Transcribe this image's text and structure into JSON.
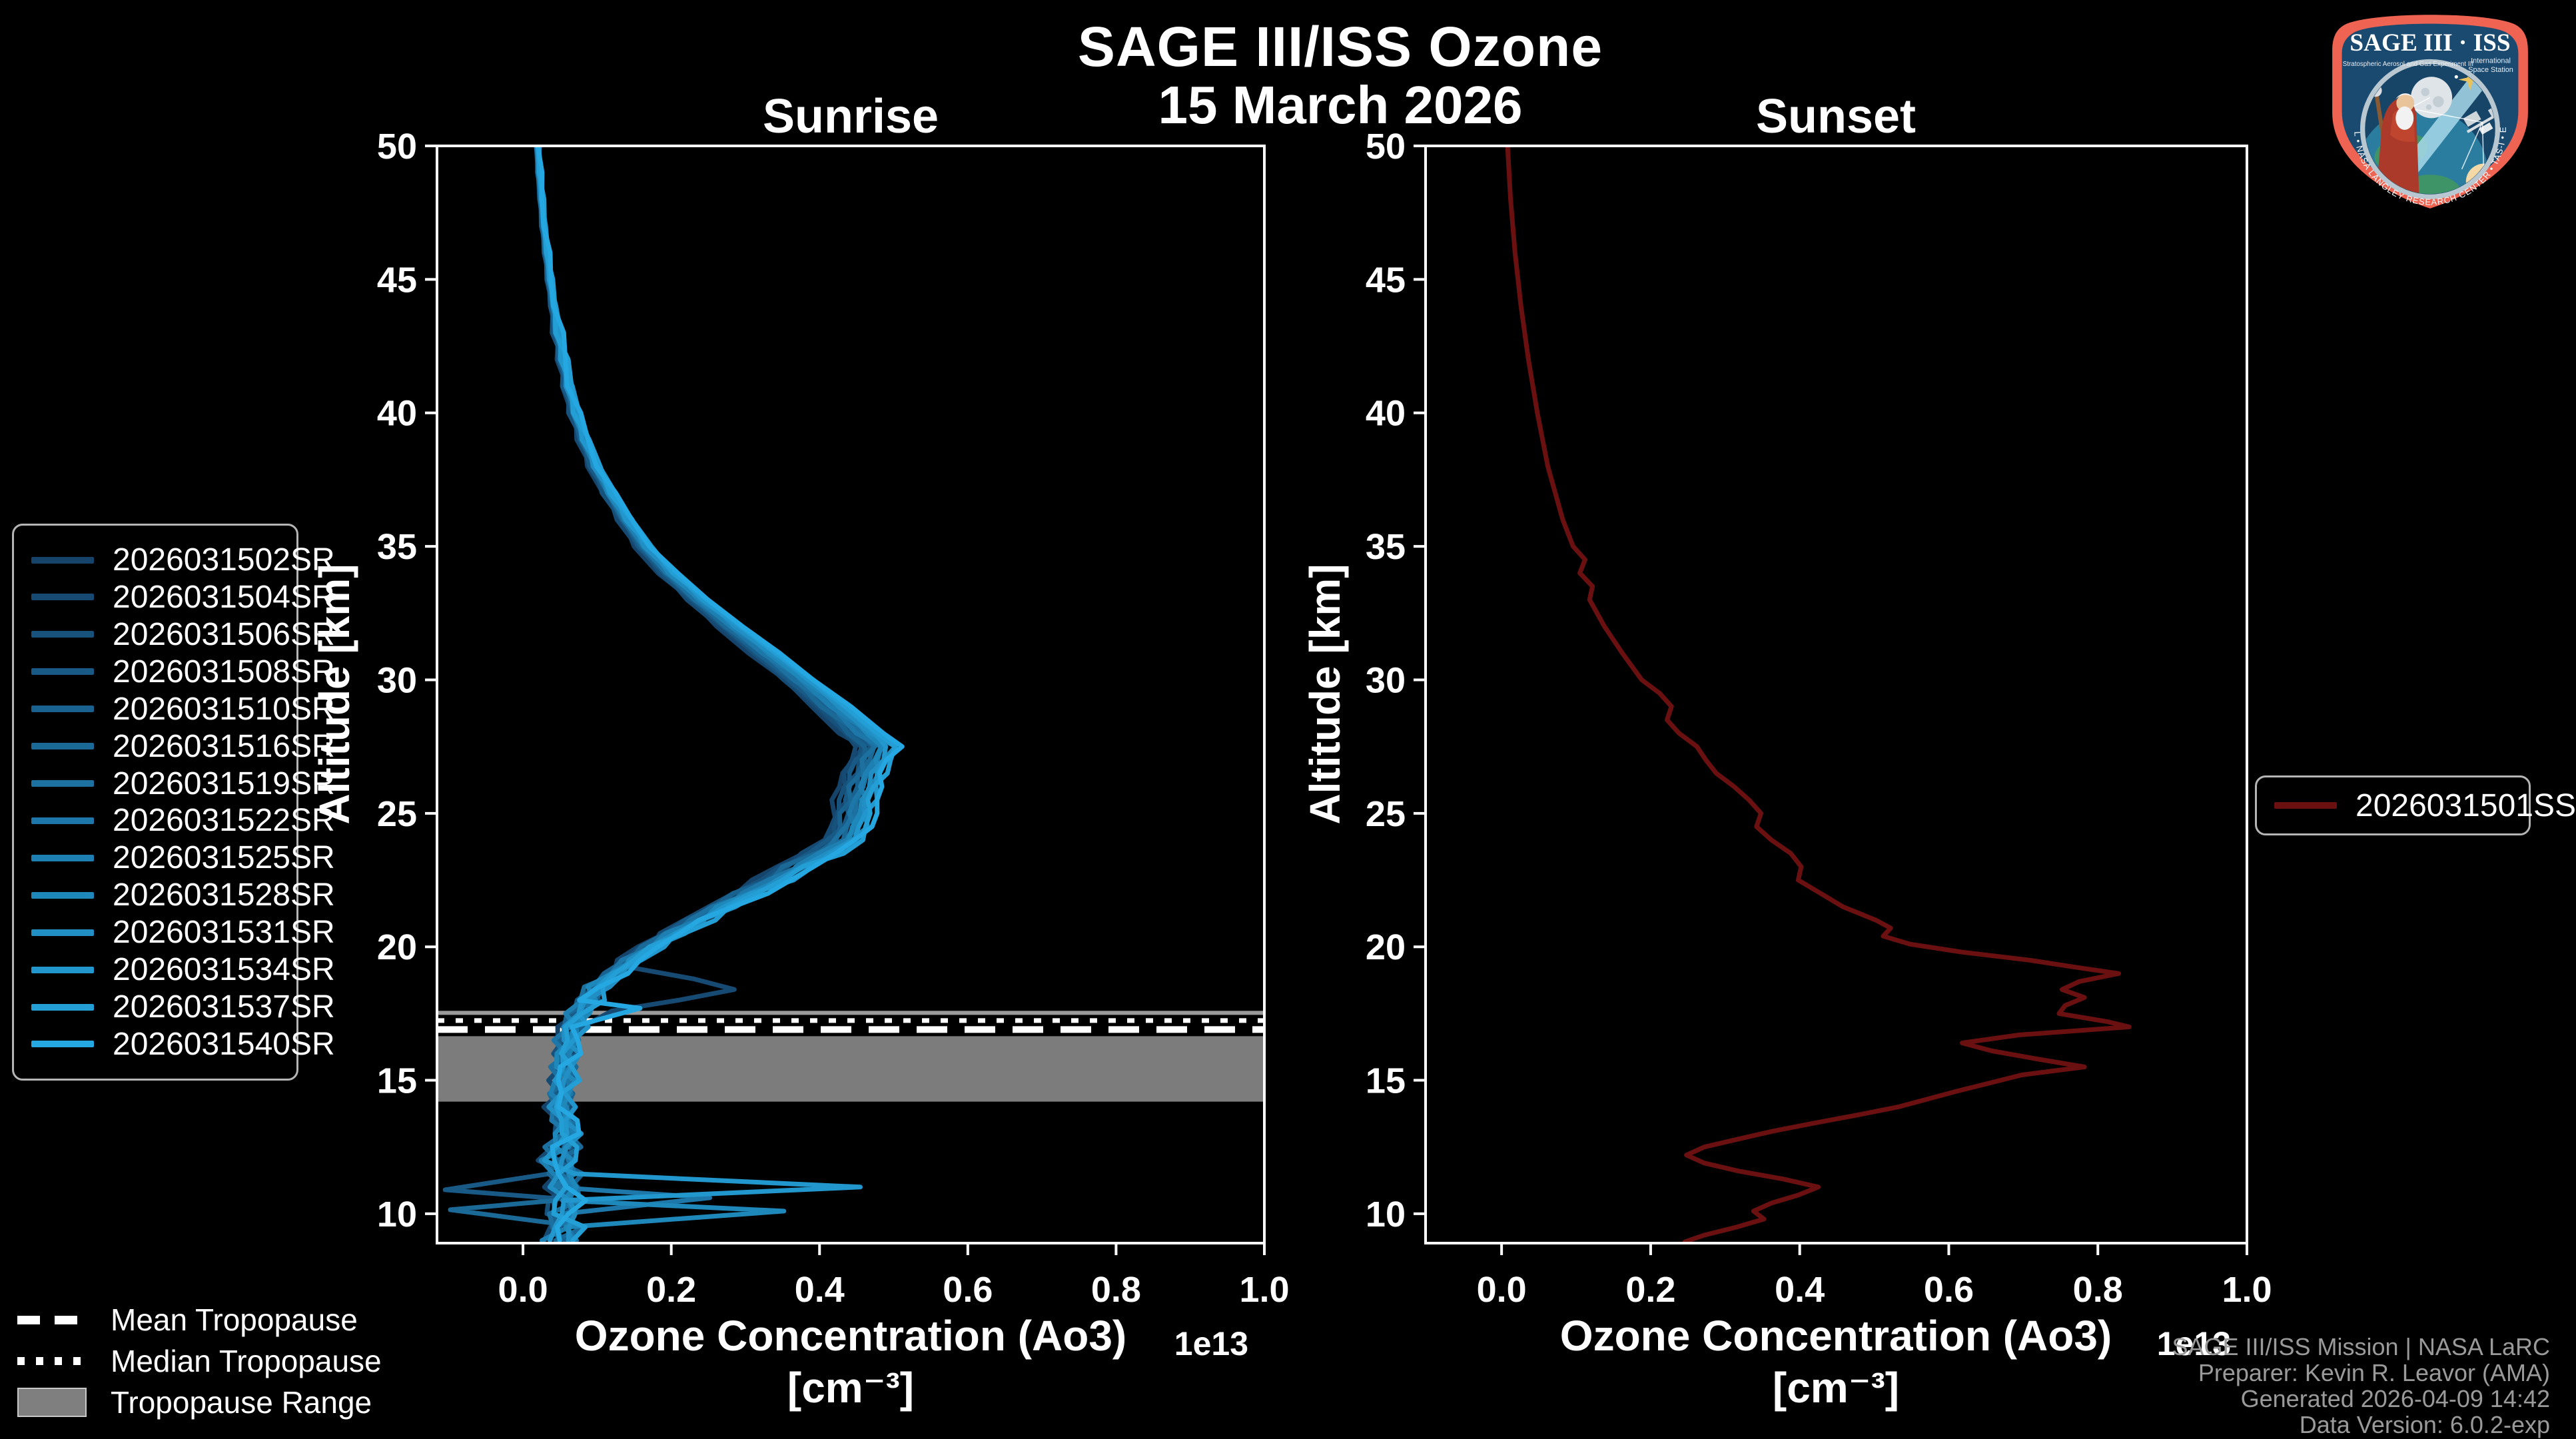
{
  "header": {
    "title_line1": "SAGE III/ISS Ozone",
    "title_line2": "15 March 2026"
  },
  "chart_data": {
    "type": "line",
    "title": "SAGE III/ISS Ozone",
    "subtitle": "15 March 2026",
    "grid": false,
    "panels": [
      {
        "title": "Sunrise",
        "xlabel": "Ozone Concentration (Ao3)",
        "xlabel_units": "[cm⁻³]",
        "ylabel": "Altitude [km]",
        "offset_text": "1e13",
        "xlim": [
          -0.116,
          1.0
        ],
        "ylim": [
          8.9,
          50
        ],
        "xticks": [
          0.0,
          0.2,
          0.4,
          0.6,
          0.8,
          1.0
        ],
        "xtick_labels": [
          "0.0",
          "0.2",
          "0.4",
          "0.6",
          "0.8",
          "1.0"
        ],
        "yticks": [
          10,
          15,
          20,
          25,
          30,
          35,
          40,
          45,
          50
        ],
        "legend_position": "outside-left",
        "tropopause": {
          "range_km": [
            14.2,
            17.6
          ],
          "median_km": 17.2,
          "mean_km": 16.9,
          "band_color": "#7c7c7c",
          "band_top_strip_color": "#9a9a9a"
        },
        "base_profile": {
          "alt_km": [
            50,
            49,
            48,
            47,
            46,
            45,
            44,
            43,
            42,
            41,
            40,
            39,
            38,
            37,
            36,
            35,
            34,
            33,
            32,
            31,
            30,
            29,
            28,
            27.5,
            27,
            26.5,
            26,
            25.5,
            25,
            24.5,
            24,
            23.5,
            23,
            22.5,
            22,
            21.5,
            21,
            20.5,
            20,
            19.5,
            19,
            18.5,
            18,
            17.5,
            17,
            16.5,
            16,
            15.5,
            15,
            14.5,
            14,
            13.5,
            13,
            12.5,
            12,
            11.5,
            11,
            10.5,
            10,
            9.5,
            9
          ],
          "value_1e13": [
            0.02,
            0.022,
            0.025,
            0.028,
            0.032,
            0.036,
            0.041,
            0.047,
            0.054,
            0.061,
            0.07,
            0.082,
            0.097,
            0.116,
            0.138,
            0.163,
            0.196,
            0.236,
            0.28,
            0.326,
            0.372,
            0.416,
            0.456,
            0.478,
            0.469,
            0.461,
            0.455,
            0.45,
            0.446,
            0.441,
            0.431,
            0.404,
            0.368,
            0.34,
            0.302,
            0.266,
            0.236,
            0.202,
            0.172,
            0.146,
            0.122,
            0.101,
            0.086,
            0.075,
            0.066,
            0.061,
            0.058,
            0.056,
            0.055,
            0.052,
            0.05,
            0.055,
            0.06,
            0.052,
            0.048,
            0.054,
            0.06,
            0.055,
            0.05,
            0.057,
            0.052
          ]
        },
        "series": [
          {
            "name": "2026031502SR",
            "color": "#15436a",
            "seed": 0,
            "overrides": []
          },
          {
            "name": "2026031504SR",
            "color": "#164a73",
            "seed": 1,
            "overrides": [
              [
                19.2,
                0.15,
                0.26
              ],
              [
                18.8,
                0.23,
                0.26
              ],
              [
                18.4,
                0.285,
                0.26
              ],
              [
                18.0,
                0.21,
                0.26
              ],
              [
                17.6,
                0.12,
                0.26
              ]
            ]
          },
          {
            "name": "2026031506SR",
            "color": "#17527c",
            "seed": 2,
            "overrides": []
          },
          {
            "name": "2026031508SR",
            "color": "#185a85",
            "seed": 3,
            "overrides": [
              [
                10.9,
                -0.105,
                0.3
              ]
            ]
          },
          {
            "name": "2026031510SR",
            "color": "#19618e",
            "seed": 4,
            "overrides": []
          },
          {
            "name": "2026031516SR",
            "color": "#1b6997",
            "seed": 5,
            "overrides": [
              [
                10.15,
                -0.098,
                0.3
              ]
            ]
          },
          {
            "name": "2026031519SR",
            "color": "#1c71a0",
            "seed": 6,
            "overrides": []
          },
          {
            "name": "2026031522SR",
            "color": "#1d78a9",
            "seed": 7,
            "overrides": [
              [
                10.6,
                0.252,
                0.25
              ]
            ]
          },
          {
            "name": "2026031525SR",
            "color": "#1e80b2",
            "seed": 8,
            "overrides": []
          },
          {
            "name": "2026031528SR",
            "color": "#1f88bb",
            "seed": 9,
            "overrides": [
              [
                10.1,
                0.352,
                0.3
              ]
            ]
          },
          {
            "name": "2026031531SR",
            "color": "#218fc4",
            "seed": 10,
            "overrides": []
          },
          {
            "name": "2026031534SR",
            "color": "#2297cd",
            "seed": 11,
            "overrides": [
              [
                11.0,
                0.455,
                0.35
              ]
            ]
          },
          {
            "name": "2026031537SR",
            "color": "#239fd6",
            "seed": 12,
            "overrides": []
          },
          {
            "name": "2026031540SR",
            "color": "#25a7e2",
            "seed": 13,
            "overrides": [
              [
                17.7,
                0.158,
                0.25
              ]
            ]
          }
        ]
      },
      {
        "title": "Sunset",
        "xlabel": "Ozone Concentration (Ao3)",
        "xlabel_units": "[cm⁻³]",
        "ylabel": "Altitude [km]",
        "offset_text": "1e13",
        "xlim": [
          -0.102,
          1.0
        ],
        "ylim": [
          8.9,
          50
        ],
        "xticks": [
          0.0,
          0.2,
          0.4,
          0.6,
          0.8,
          1.0
        ],
        "xtick_labels": [
          "0.0",
          "0.2",
          "0.4",
          "0.6",
          "0.8",
          "1.0"
        ],
        "yticks": [
          10,
          15,
          20,
          25,
          30,
          35,
          40,
          45,
          50
        ],
        "legend_position": "outside-right",
        "series": [
          {
            "name": "2026031501SS",
            "color": "#6b1010",
            "points_alt_value": [
              [
                50,
                0.008
              ],
              [
                48,
                0.012
              ],
              [
                46,
                0.018
              ],
              [
                44,
                0.026
              ],
              [
                42,
                0.036
              ],
              [
                40,
                0.048
              ],
              [
                38,
                0.062
              ],
              [
                37,
                0.072
              ],
              [
                36,
                0.082
              ],
              [
                35,
                0.096
              ],
              [
                34.5,
                0.112
              ],
              [
                34,
                0.105
              ],
              [
                33.5,
                0.122
              ],
              [
                33,
                0.118
              ],
              [
                32,
                0.138
              ],
              [
                31,
                0.162
              ],
              [
                30,
                0.188
              ],
              [
                29.5,
                0.212
              ],
              [
                29,
                0.228
              ],
              [
                28.5,
                0.222
              ],
              [
                28,
                0.238
              ],
              [
                27.5,
                0.262
              ],
              [
                27,
                0.274
              ],
              [
                26.5,
                0.288
              ],
              [
                26,
                0.312
              ],
              [
                25.5,
                0.332
              ],
              [
                25,
                0.348
              ],
              [
                24.5,
                0.342
              ],
              [
                24,
                0.362
              ],
              [
                23.5,
                0.388
              ],
              [
                23,
                0.402
              ],
              [
                22.5,
                0.398
              ],
              [
                22,
                0.428
              ],
              [
                21.5,
                0.458
              ],
              [
                21,
                0.502
              ],
              [
                20.7,
                0.522
              ],
              [
                20.4,
                0.512
              ],
              [
                20.1,
                0.548
              ],
              [
                19.8,
                0.618
              ],
              [
                19.5,
                0.708
              ],
              [
                19.2,
                0.778
              ],
              [
                19,
                0.828
              ],
              [
                18.7,
                0.775
              ],
              [
                18.4,
                0.752
              ],
              [
                18.1,
                0.782
              ],
              [
                17.8,
                0.756
              ],
              [
                17.5,
                0.748
              ],
              [
                17.2,
                0.812
              ],
              [
                17,
                0.842
              ],
              [
                16.7,
                0.695
              ],
              [
                16.4,
                0.618
              ],
              [
                16.1,
                0.658
              ],
              [
                15.8,
                0.718
              ],
              [
                15.5,
                0.782
              ],
              [
                15.2,
                0.698
              ],
              [
                14.9,
                0.655
              ],
              [
                14.6,
                0.612
              ],
              [
                14.3,
                0.572
              ],
              [
                14,
                0.532
              ],
              [
                13.7,
                0.478
              ],
              [
                13.4,
                0.42
              ],
              [
                13.1,
                0.365
              ],
              [
                12.8,
                0.318
              ],
              [
                12.5,
                0.272
              ],
              [
                12.2,
                0.248
              ],
              [
                11.9,
                0.272
              ],
              [
                11.6,
                0.318
              ],
              [
                11.3,
                0.378
              ],
              [
                11,
                0.425
              ],
              [
                10.7,
                0.398
              ],
              [
                10.4,
                0.362
              ],
              [
                10.1,
                0.338
              ],
              [
                9.8,
                0.352
              ],
              [
                9.5,
                0.315
              ],
              [
                9.2,
                0.272
              ],
              [
                8.95,
                0.246
              ]
            ]
          }
        ]
      }
    ],
    "tropopause_legend": [
      {
        "label": "Mean Tropopause",
        "style": "dashed"
      },
      {
        "label": "Median Tropopause",
        "style": "dotted"
      },
      {
        "label": "Tropopause Range",
        "style": "band"
      }
    ]
  },
  "attribution": {
    "line1": "SAGE III/ISS Mission | NASA LaRC",
    "line2": "Preparer: Kevin R. Leavor (AMA)",
    "line3": "Generated 2026-04-09 14:42",
    "line4": "Data Version: 6.0.2-exp"
  },
  "logo": {
    "title": "SAGE III · ISS",
    "subtitle_left": "Stratospheric Aerosol and Gas Experiment III",
    "subtitle_right1": "International",
    "subtitle_right2": "Space Station",
    "border_text": "BALL • NASA LANGLEY RESEARCH CENTER • TAS-I • ESA",
    "border_color": "#ee6352",
    "field_color": "#1b4a71"
  },
  "colors": {
    "background": "#000000",
    "frame": "#ffffff",
    "tick_text": "#ffffff",
    "attribution_text": "#9a9a9a",
    "sunrise_dark": "#15436a",
    "sunrise_bright": "#25a7e2",
    "sunset_line": "#6b1010"
  }
}
